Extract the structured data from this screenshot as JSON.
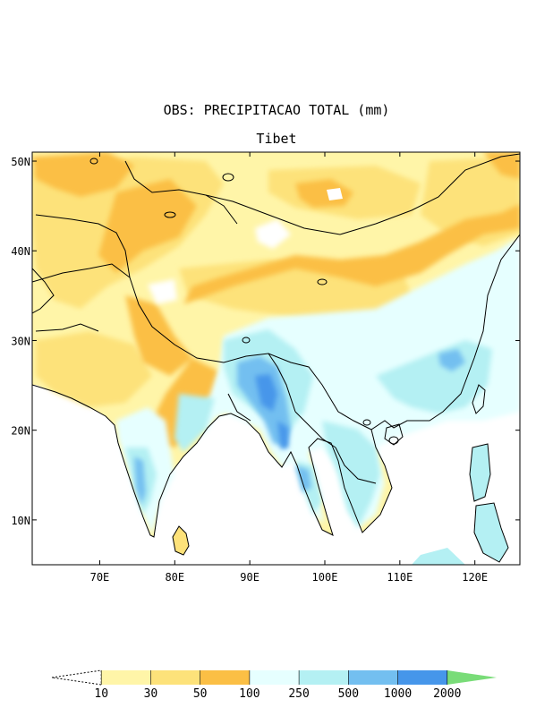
{
  "map": {
    "title": "OBS: PRECIPITACAO TOTAL (mm)",
    "subtitle": "Tibet",
    "lon_range": [
      61,
      126
    ],
    "lat_range": [
      5,
      51
    ],
    "lat_ticks": [
      "10N",
      "20N",
      "30N",
      "40N",
      "50N"
    ],
    "lon_ticks": [
      "70E",
      "80E",
      "90E",
      "100E",
      "110E",
      "120E"
    ],
    "ocean_color": "#ffffff",
    "coast_color": "#000000"
  },
  "legend": {
    "labels": [
      "10",
      "30",
      "50",
      "100",
      "250",
      "500",
      "1000",
      "2000"
    ],
    "bins": [
      {
        "color": "#ffffff"
      },
      {
        "color": "#fff5a8"
      },
      {
        "color": "#fde27a"
      },
      {
        "color": "#fbbf45"
      },
      {
        "color": "#e6ffff"
      },
      {
        "color": "#b4f0f3"
      },
      {
        "color": "#73bff0"
      },
      {
        "color": "#4696ea"
      },
      {
        "color": "#79dc78"
      }
    ]
  }
}
